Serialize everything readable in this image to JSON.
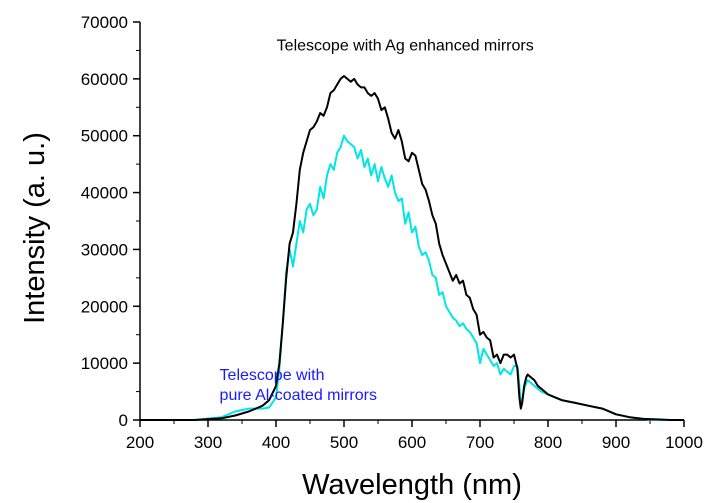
{
  "chart_data": {
    "type": "line",
    "title": "",
    "xlabel": "Wavelength (nm)",
    "ylabel": "Intensity (a. u.)",
    "xlim": [
      200,
      1000
    ],
    "ylim": [
      0,
      70000
    ],
    "xticks": [
      200,
      300,
      400,
      500,
      600,
      700,
      800,
      900,
      1000
    ],
    "xtick_labels": [
      "200",
      "300",
      "400",
      "500",
      "600",
      "700",
      "800",
      "900",
      "1000"
    ],
    "yticks": [
      0,
      10000,
      20000,
      30000,
      40000,
      50000,
      60000,
      70000
    ],
    "ytick_labels": [
      "0",
      "10000",
      "20000",
      "30000",
      "40000",
      "50000",
      "60000",
      "70000"
    ],
    "grid": false,
    "legend": "none",
    "annotations": [
      {
        "series": "ag",
        "lines": [
          "Telescope with Ag enhanced mirrors"
        ],
        "color": "#000000",
        "x": 590,
        "y": 65000,
        "anchor": "middle"
      },
      {
        "series": "al",
        "lines": [
          "Telescope with",
          "pure Al-coated mirrors"
        ],
        "color": "#1a1aff",
        "x": 317,
        "y": 7000,
        "anchor": "start"
      }
    ],
    "series": [
      {
        "id": "ag",
        "color": "#000000",
        "x": [
          200,
          240,
          280,
          320,
          340,
          360,
          380,
          390,
          400,
          405,
          410,
          415,
          420,
          425,
          430,
          435,
          440,
          445,
          450,
          455,
          460,
          465,
          470,
          475,
          480,
          485,
          490,
          495,
          500,
          505,
          510,
          515,
          520,
          525,
          530,
          535,
          540,
          545,
          550,
          555,
          560,
          565,
          570,
          575,
          580,
          585,
          590,
          595,
          600,
          605,
          610,
          615,
          620,
          625,
          630,
          635,
          640,
          645,
          650,
          655,
          660,
          665,
          670,
          675,
          680,
          685,
          690,
          695,
          700,
          705,
          710,
          715,
          720,
          725,
          730,
          735,
          740,
          745,
          750,
          755,
          758,
          760,
          762,
          765,
          768,
          770,
          775,
          780,
          785,
          790,
          800,
          820,
          840,
          860,
          880,
          900,
          920,
          940,
          960,
          980,
          1000
        ],
        "y": [
          0,
          0,
          0,
          300,
          800,
          1500,
          2500,
          3500,
          6000,
          10000,
          17000,
          25000,
          31000,
          33000,
          38000,
          44000,
          47000,
          49000,
          51000,
          51500,
          52500,
          54000,
          53500,
          55000,
          57500,
          58000,
          59000,
          60000,
          60500,
          60000,
          59500,
          60000,
          59000,
          58500,
          58500,
          57500,
          57000,
          57500,
          56500,
          54500,
          55000,
          53000,
          50500,
          49500,
          51000,
          49000,
          46000,
          45500,
          47000,
          46500,
          44000,
          41500,
          40500,
          38500,
          36000,
          34500,
          31000,
          29000,
          27500,
          26000,
          24500,
          25500,
          24000,
          24500,
          22000,
          21500,
          19500,
          18500,
          15000,
          15500,
          14500,
          14000,
          11000,
          11500,
          10000,
          11500,
          11500,
          11000,
          11500,
          9000,
          4000,
          2000,
          3000,
          6000,
          7500,
          8000,
          7500,
          7000,
          6000,
          5500,
          4500,
          3500,
          3000,
          2500,
          2000,
          1000,
          500,
          200,
          100,
          0,
          0
        ]
      },
      {
        "id": "al",
        "color": "#00e5e5",
        "x": [
          200,
          240,
          280,
          320,
          340,
          360,
          380,
          390,
          400,
          405,
          410,
          415,
          420,
          425,
          430,
          435,
          440,
          445,
          450,
          455,
          460,
          465,
          470,
          475,
          480,
          485,
          490,
          495,
          500,
          505,
          510,
          515,
          520,
          525,
          530,
          535,
          540,
          545,
          550,
          555,
          560,
          565,
          570,
          575,
          580,
          585,
          590,
          595,
          600,
          605,
          610,
          615,
          620,
          625,
          630,
          635,
          640,
          645,
          650,
          655,
          660,
          665,
          670,
          675,
          680,
          685,
          690,
          695,
          700,
          705,
          710,
          715,
          720,
          725,
          730,
          735,
          740,
          745,
          750,
          755,
          758,
          760,
          762,
          765,
          768,
          770,
          775,
          780,
          785,
          790,
          800,
          820,
          840,
          860,
          880,
          900,
          920,
          940,
          960,
          980,
          1000
        ],
        "y": [
          0,
          0,
          0,
          500,
          1500,
          2000,
          2000,
          2200,
          4000,
          9000,
          17000,
          26000,
          30000,
          27000,
          31000,
          35000,
          33000,
          37000,
          38000,
          36000,
          37000,
          41000,
          39000,
          43000,
          45000,
          44000,
          47000,
          48000,
          50000,
          49000,
          48500,
          48000,
          46000,
          47500,
          44500,
          46000,
          43000,
          45000,
          42000,
          44500,
          42500,
          41000,
          43000,
          40000,
          38500,
          39000,
          34500,
          36500,
          33000,
          34000,
          30500,
          29000,
          29500,
          28000,
          25500,
          25000,
          22000,
          22500,
          20000,
          19000,
          18000,
          17500,
          16500,
          17000,
          16000,
          15500,
          14500,
          13500,
          10000,
          12500,
          11500,
          10500,
          9500,
          10000,
          8000,
          9000,
          8500,
          8000,
          9500,
          9500,
          6000,
          2500,
          3500,
          5500,
          6500,
          7000,
          6500,
          6000,
          5500,
          5000,
          4500,
          3500,
          3000,
          2500,
          2000,
          1000,
          500,
          200,
          0,
          0,
          0
        ]
      }
    ]
  }
}
